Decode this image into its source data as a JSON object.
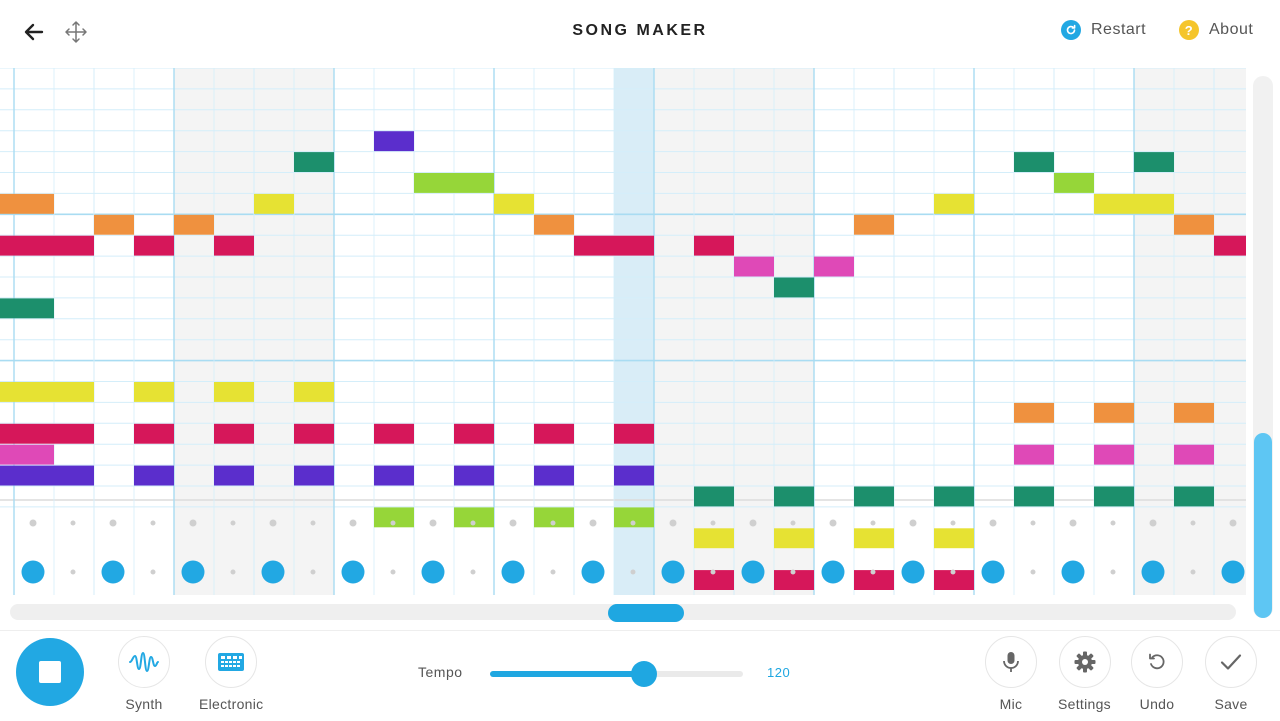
{
  "header": {
    "title": "SONG MAKER",
    "restart_label": "Restart",
    "about_label": "About",
    "about_glyph": "?"
  },
  "colors": {
    "accent": "#22a8e3",
    "restart": "#22a8e3",
    "about": "#f5c52b",
    "grid_line": "#d4eefa",
    "grid_major": "#a9dcf2",
    "grid_shade": "#f4f4f4",
    "playhead": "#d9edf7"
  },
  "grid": {
    "note_rows": 21,
    "beats": 31,
    "shaded_bars": [
      1,
      4,
      7
    ],
    "playhead_col": 15,
    "notes": [
      [
        0,
        7,
        "orange"
      ],
      [
        0,
        9,
        "red"
      ],
      [
        0,
        12,
        "green"
      ],
      [
        0,
        16,
        "yellow"
      ],
      [
        0,
        18,
        "red"
      ],
      [
        0,
        19,
        "pink"
      ],
      [
        0,
        20,
        "purple"
      ],
      [
        1,
        9,
        "red"
      ],
      [
        1,
        16,
        "yellow"
      ],
      [
        1,
        18,
        "red"
      ],
      [
        1,
        20,
        "purple"
      ],
      [
        2,
        8,
        "orange"
      ],
      [
        3,
        9,
        "red"
      ],
      [
        3,
        16,
        "yellow"
      ],
      [
        3,
        18,
        "red"
      ],
      [
        3,
        20,
        "purple"
      ],
      [
        4,
        8,
        "orange"
      ],
      [
        5,
        9,
        "red"
      ],
      [
        5,
        16,
        "yellow"
      ],
      [
        5,
        18,
        "red"
      ],
      [
        5,
        20,
        "purple"
      ],
      [
        6,
        7,
        "yellow"
      ],
      [
        7,
        5,
        "green"
      ],
      [
        7,
        16,
        "yellow"
      ],
      [
        7,
        18,
        "red"
      ],
      [
        7,
        20,
        "purple"
      ],
      [
        9,
        4,
        "purple"
      ],
      [
        9,
        18,
        "red"
      ],
      [
        9,
        20,
        "purple"
      ],
      [
        9,
        22,
        "lime"
      ],
      [
        10,
        6,
        "lime"
      ],
      [
        11,
        6,
        "lime"
      ],
      [
        11,
        18,
        "red"
      ],
      [
        11,
        20,
        "purple"
      ],
      [
        11,
        22,
        "lime"
      ],
      [
        12,
        7,
        "yellow"
      ],
      [
        13,
        8,
        "orange"
      ],
      [
        13,
        18,
        "red"
      ],
      [
        13,
        20,
        "purple"
      ],
      [
        13,
        22,
        "lime"
      ],
      [
        14,
        9,
        "red"
      ],
      [
        15,
        9,
        "red"
      ],
      [
        15,
        18,
        "red"
      ],
      [
        15,
        20,
        "purple"
      ],
      [
        15,
        22,
        "lime"
      ],
      [
        17,
        9,
        "red"
      ],
      [
        17,
        21,
        "green"
      ],
      [
        17,
        23,
        "yellow"
      ],
      [
        17,
        25,
        "red"
      ],
      [
        18,
        10,
        "pink"
      ],
      [
        19,
        11,
        "green"
      ],
      [
        19,
        21,
        "green"
      ],
      [
        19,
        23,
        "yellow"
      ],
      [
        19,
        25,
        "red"
      ],
      [
        20,
        10,
        "pink"
      ],
      [
        21,
        8,
        "orange"
      ],
      [
        21,
        21,
        "green"
      ],
      [
        21,
        23,
        "yellow"
      ],
      [
        21,
        25,
        "red"
      ],
      [
        23,
        7,
        "yellow"
      ],
      [
        23,
        21,
        "green"
      ],
      [
        23,
        23,
        "yellow"
      ],
      [
        23,
        25,
        "red"
      ],
      [
        25,
        5,
        "green"
      ],
      [
        25,
        17,
        "orange"
      ],
      [
        25,
        19,
        "pink"
      ],
      [
        25,
        21,
        "green"
      ],
      [
        26,
        6,
        "lime"
      ],
      [
        27,
        7,
        "yellow"
      ],
      [
        27,
        17,
        "orange"
      ],
      [
        27,
        19,
        "pink"
      ],
      [
        27,
        21,
        "green"
      ],
      [
        28,
        5,
        "green"
      ],
      [
        28,
        7,
        "yellow"
      ],
      [
        29,
        8,
        "orange"
      ],
      [
        29,
        17,
        "orange"
      ],
      [
        29,
        19,
        "pink"
      ],
      [
        29,
        21,
        "green"
      ],
      [
        30,
        9,
        "red"
      ]
    ],
    "note_colors": {
      "red": "#d6175a",
      "orange": "#ef913f",
      "yellow": "#e6e233",
      "lime": "#96d639",
      "green": "#1c8f6c",
      "purple": "#5b2ecc",
      "pink": "#df49b7"
    }
  },
  "percussion": {
    "big_hits": [
      0,
      2,
      4,
      6,
      8,
      10,
      12,
      14,
      16,
      18,
      20,
      22,
      24,
      26,
      28,
      30
    ]
  },
  "toolbar": {
    "synth_label": "Synth",
    "electronic_label": "Electronic",
    "tempo_label": "Tempo",
    "tempo_value": "120",
    "tempo_fraction": 0.61,
    "mic_label": "Mic",
    "settings_label": "Settings",
    "undo_label": "Undo",
    "save_label": "Save"
  }
}
